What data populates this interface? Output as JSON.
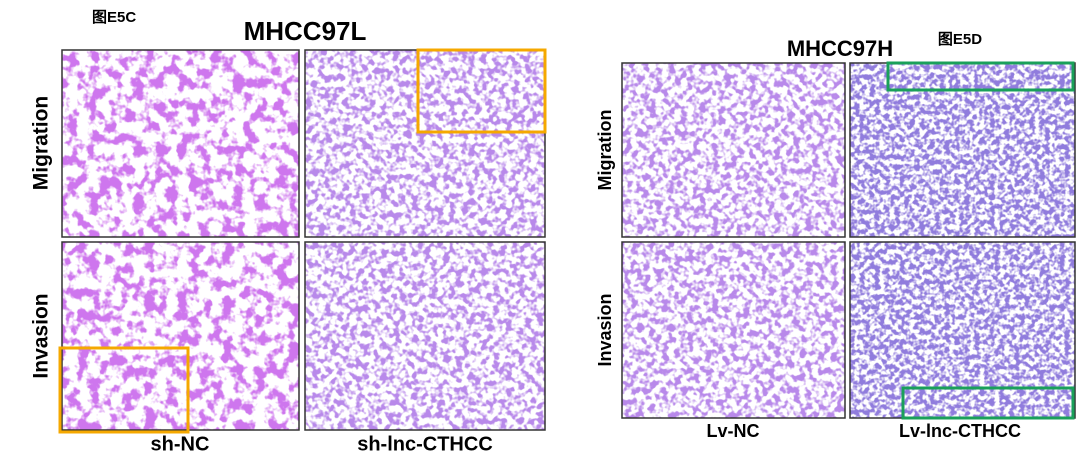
{
  "panels": [
    {
      "tag": "图E5C",
      "title": "MHCC97L",
      "rows": [
        "Migration",
        "Invasion"
      ],
      "columns": [
        "sh-NC",
        "sh-lnc-CTHCC"
      ]
    },
    {
      "tag": "图E5D",
      "title": "MHCC97H",
      "rows": [
        "Migration",
        "Invasion"
      ],
      "columns": [
        "Lv-NC",
        "Lv-lnc-CTHCC"
      ]
    }
  ]
}
